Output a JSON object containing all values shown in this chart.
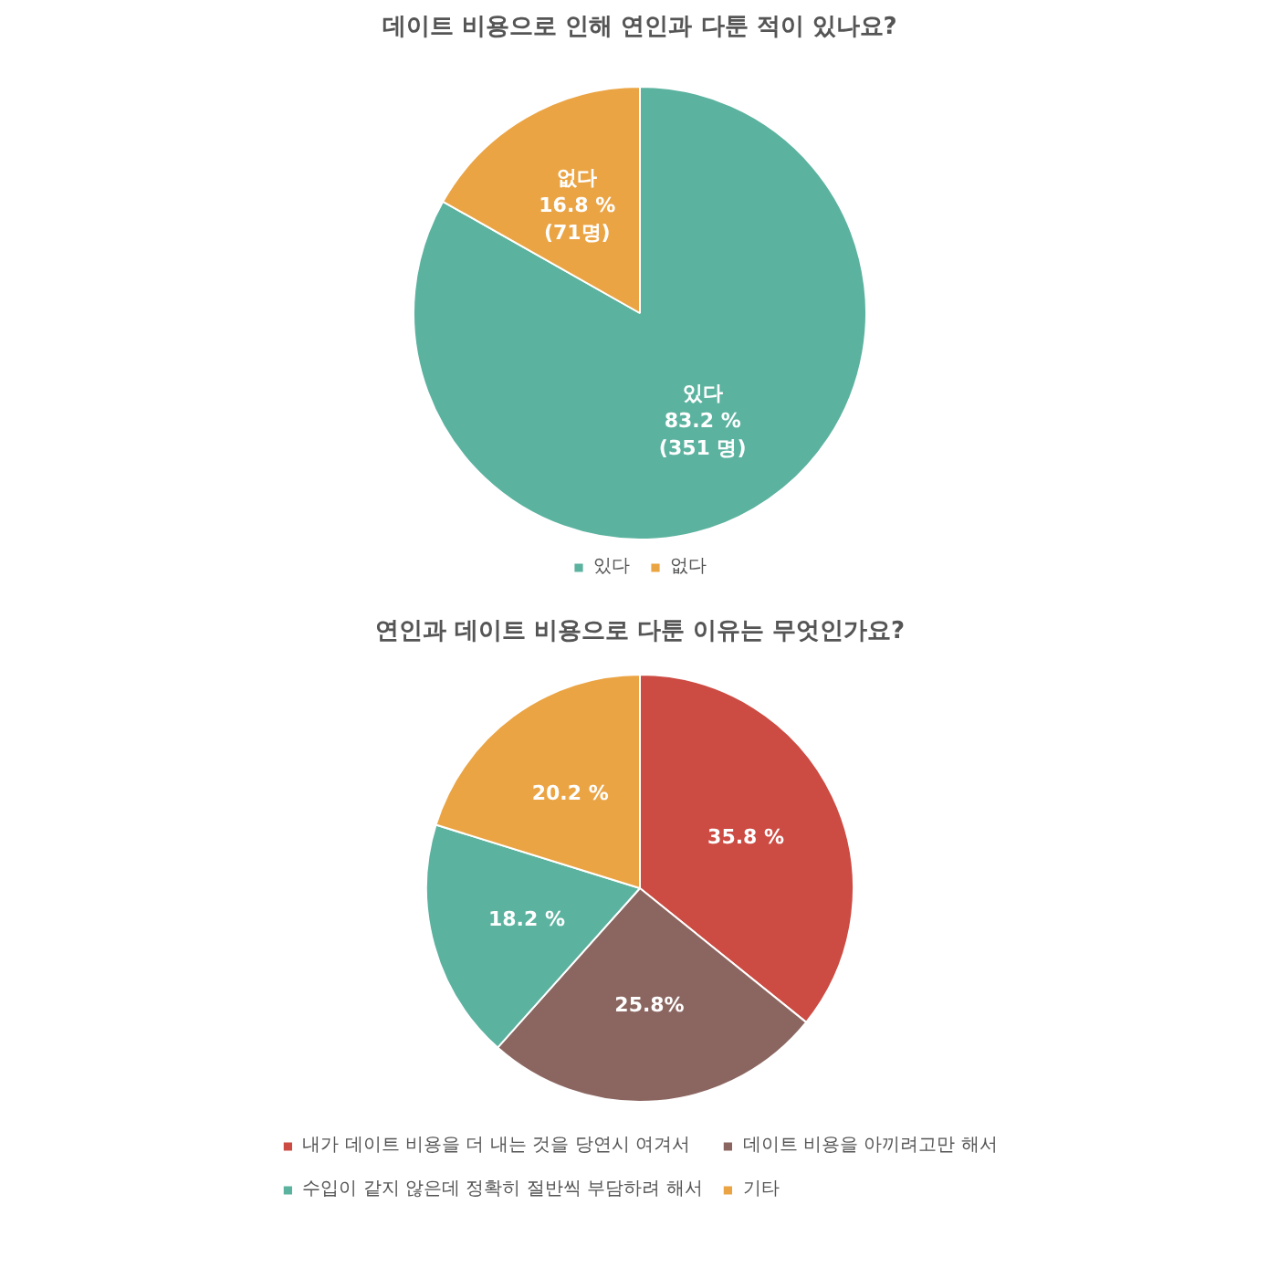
{
  "chart_data": [
    {
      "type": "pie",
      "title": "데이트 비용으로 인해 연인과 다툰 적이 있나요?",
      "categories": [
        "있다",
        "없다"
      ],
      "values": [
        83.2,
        16.8
      ],
      "colors": [
        "#5bb29f",
        "#eba444"
      ],
      "value_labels": [
        "있다\n83.2 %\n(351 명)",
        "없다\n16.8 %\n(71명)"
      ],
      "legend": "bottom"
    },
    {
      "type": "pie",
      "title": "연인과 데이트 비용으로 다툰 이유는 무엇인가요?",
      "categories": [
        "내가 데이트 비용을 더 내는 것을 당연시 여겨서",
        "데이트 비용을 아끼려고만 해서",
        "수입이 같지 않은데 정확히 절반씩 부담하려 해서",
        "기타"
      ],
      "values": [
        35.8,
        25.8,
        18.2,
        20.2
      ],
      "colors": [
        "#cc4b42",
        "#8b6661",
        "#5bb29f",
        "#eba444"
      ],
      "value_labels": [
        "35.8 %",
        "25.8%",
        "18.2 %",
        "20.2 %"
      ],
      "legend": "bottom"
    }
  ]
}
